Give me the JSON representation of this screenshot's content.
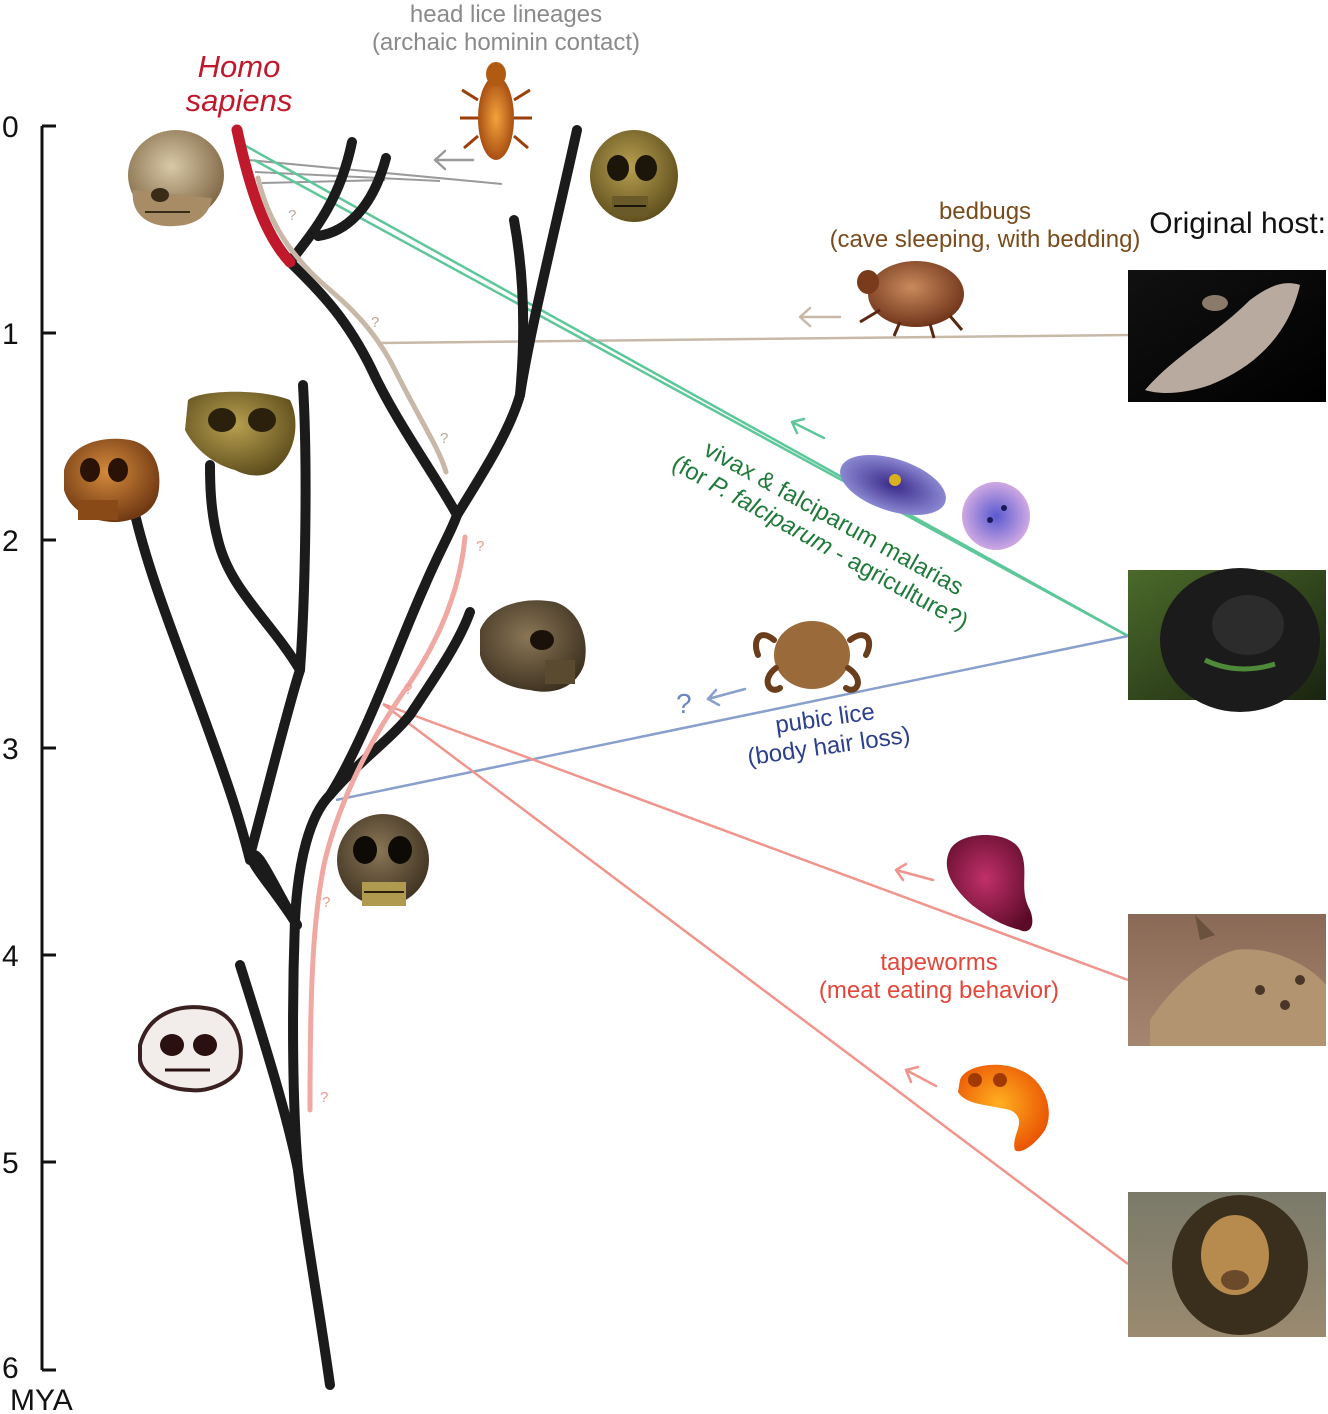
{
  "axis": {
    "unit": "MYA",
    "ticks": [
      "0",
      "1",
      "2",
      "3",
      "4",
      "5",
      "6"
    ]
  },
  "labels": {
    "homo_sapiens": [
      "Homo",
      "sapiens"
    ],
    "original_host": "Original host:",
    "question_mark": "?"
  },
  "parasites": {
    "head_lice": {
      "line1": "head lice lineages",
      "line2": "(archaic hominin contact)",
      "color": "#8a8a8a"
    },
    "bedbugs": {
      "line1": "bedbugs",
      "line2": "(cave sleeping, with bedding)",
      "color": "#7a4b1c"
    },
    "malaria": {
      "line1": "vivax & falciparum malarias",
      "line2_prefix": "(for ",
      "line2_italic": "P. falciparum",
      "line2_suffix": " - agriculture?)",
      "color": "#1f7a3a"
    },
    "pubic_lice": {
      "line1": "pubic lice",
      "line2": "(body hair loss)",
      "color": "#2b3f8f"
    },
    "tapeworms": {
      "line1": "tapeworms",
      "line2": "(meat eating behavior)",
      "color": "#e2473a"
    }
  },
  "hosts": [
    {
      "name": "bat",
      "icon": "bat-photo"
    },
    {
      "name": "gorilla",
      "icon": "gorilla-photo"
    },
    {
      "name": "hyena",
      "icon": "hyena-photo"
    },
    {
      "name": "lion",
      "icon": "lion-photo"
    }
  ],
  "colors": {
    "homo_sapiens": "#c0192c",
    "tree": "#1b1b1b",
    "head_lice_line": "#9a9a9a",
    "bedbug_line": "#c8b8a8",
    "malaria_line": "#5ec79a",
    "pubic_lice_line": "#8aa0cc",
    "tapeworm_line": "#f0958d"
  }
}
